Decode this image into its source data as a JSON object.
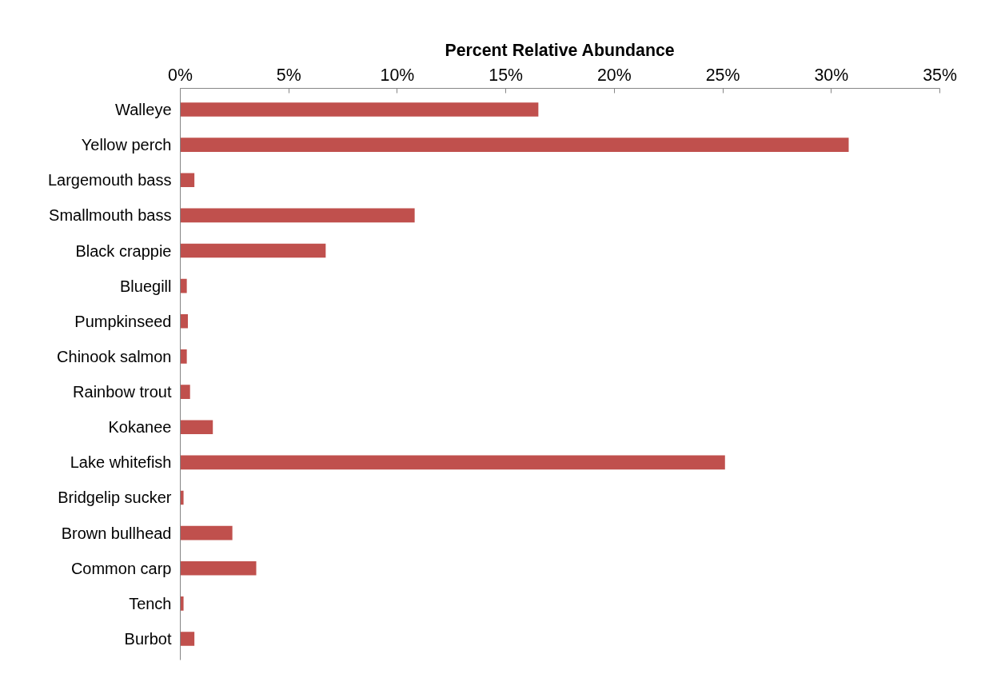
{
  "chart_data": {
    "type": "bar",
    "orientation": "horizontal",
    "xlabel": "Percent Relative Abundance",
    "categories": [
      "Walleye",
      "Yellow perch",
      "Largemouth bass",
      "Smallmouth bass",
      "Black crappie",
      "Bluegill",
      "Pumpkinseed",
      "Chinook salmon",
      "Rainbow trout",
      "Kokanee",
      "Lake whitefish",
      "Bridgelip sucker",
      "Brown bullhead",
      "Common carp",
      "Tench",
      "Burbot"
    ],
    "values": [
      16.5,
      30.8,
      0.65,
      10.8,
      6.7,
      0.3,
      0.35,
      0.3,
      0.45,
      1.5,
      25.1,
      0.15,
      2.4,
      3.5,
      0.15,
      0.65
    ],
    "color": "#c0504d",
    "xlim": [
      0,
      35
    ],
    "xticks": [
      {
        "value": 0,
        "label": "0%"
      },
      {
        "value": 5,
        "label": "5%"
      },
      {
        "value": 10,
        "label": "10%"
      },
      {
        "value": 15,
        "label": "15%"
      },
      {
        "value": 20,
        "label": "20%"
      },
      {
        "value": 25,
        "label": "25%"
      },
      {
        "value": 30,
        "label": "30%"
      },
      {
        "value": 35,
        "label": "35%"
      }
    ],
    "grid": false
  }
}
